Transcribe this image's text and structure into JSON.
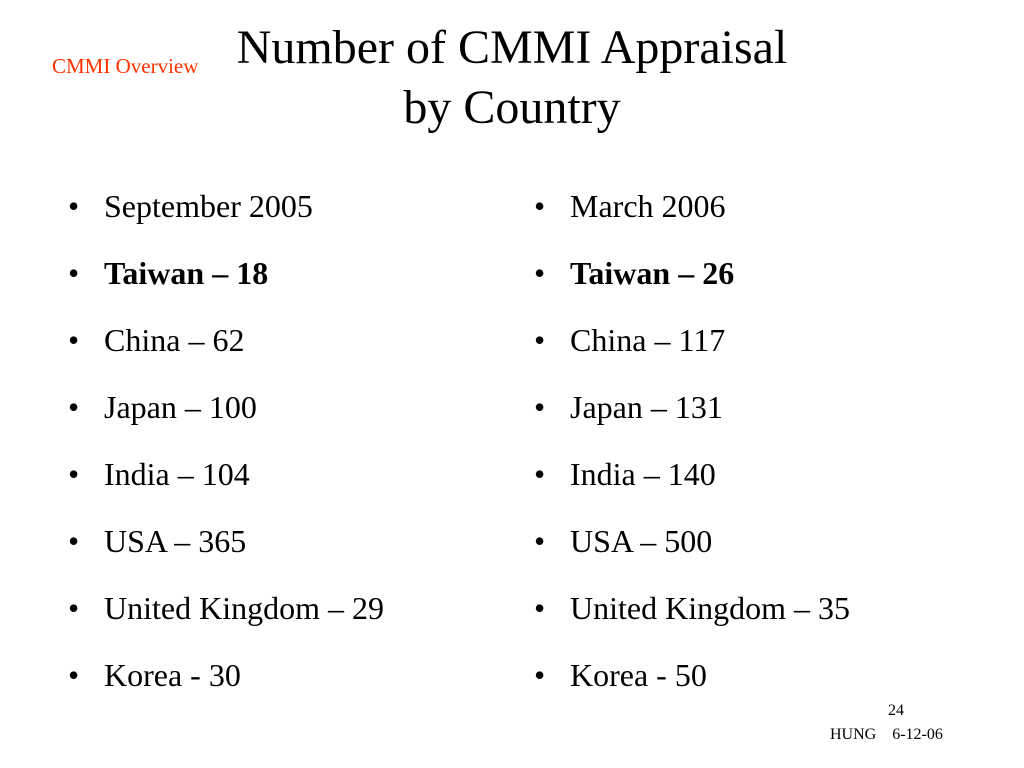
{
  "slide": {
    "header_label": "CMMI Overview",
    "title_line1": "Number of CMMI Appraisal",
    "title_line2": "by Country",
    "bullet_glyph": "•",
    "columns": [
      {
        "items": [
          "September 2005",
          "Taiwan – 18",
          "China – 62",
          "Japan – 100",
          "India – 104",
          "USA – 365",
          "United Kingdom – 29",
          "Korea - 30"
        ]
      },
      {
        "items": [
          "March 2006",
          "Taiwan – 26",
          "China – 117",
          "Japan – 131",
          "India – 140",
          "USA – 500",
          "United Kingdom – 35",
          "Korea - 50"
        ]
      }
    ],
    "page_number": "24",
    "footer_author": "HUNG",
    "footer_date": "6-12-06",
    "colors": {
      "header_label": "#ff3300",
      "text": "#000000",
      "background": "#ffffff"
    }
  }
}
